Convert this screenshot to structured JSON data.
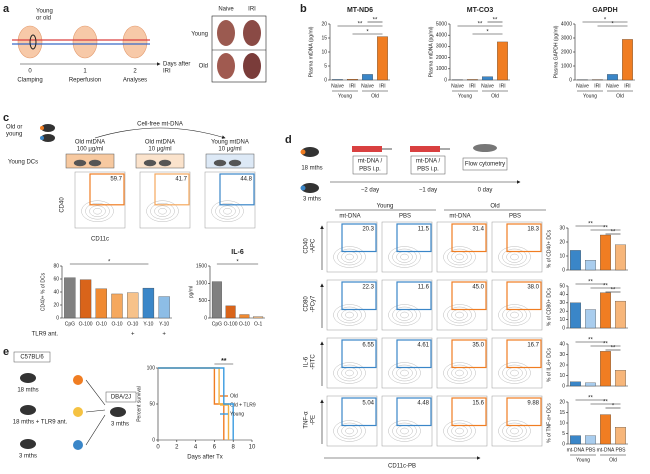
{
  "panels": {
    "a": {
      "letter": "a",
      "subject": [
        "Young",
        "or old"
      ],
      "days": [
        "0",
        "1",
        "2"
      ],
      "steps": [
        "Clamping",
        "Reperfusion",
        "Analyses"
      ],
      "axis": [
        "Days after",
        "IRI"
      ],
      "columns": [
        "Naive",
        "IRI"
      ],
      "rows": [
        "Young",
        "Old"
      ]
    },
    "b": {
      "letter": "b"
    },
    "c": {
      "letter": "c",
      "subject": [
        "Old or",
        "young"
      ],
      "treatment": "Cell-free mt-DNA",
      "wells": [
        [
          "Old mtDNA",
          "100 μg/ml"
        ],
        [
          "Old mtDNA",
          "10 μg/ml"
        ],
        [
          "Young mtDNA",
          "10 μg/ml"
        ]
      ],
      "cells": "Young DCs",
      "flow_values": [
        "59.7",
        "41.7",
        "44.8"
      ],
      "y_marker": "CD40",
      "x_marker": "CD11c"
    },
    "d": {
      "letter": "d",
      "mice": [
        "18 mths",
        "3 mths"
      ],
      "injection": [
        "mt-DNA /",
        "PBS i.p."
      ],
      "readout": "Flow cytometry",
      "days": [
        "−2 day",
        "−1 day",
        "0 day"
      ],
      "groups": [
        "Young",
        "Old"
      ],
      "columns": [
        "mt-DNA",
        "PBS",
        "mt-DNA",
        "PBS"
      ],
      "rows": [
        [
          "CD40",
          "-APC"
        ],
        [
          "CD80",
          "-PCy7"
        ],
        [
          "IL-6",
          "-FITC"
        ],
        [
          "TNF-α",
          "-PE"
        ]
      ],
      "flow_values": [
        [
          "20.3",
          "11.5",
          "31.4",
          "18.3"
        ],
        [
          "22.3",
          "11.6",
          "45.0",
          "38.0"
        ],
        [
          "6.55",
          "4.61",
          "35.0",
          "16.7"
        ],
        [
          "5.04",
          "4.48",
          "15.6",
          "9.88"
        ]
      ],
      "x_marker": "CD11c-PB"
    },
    "e": {
      "letter": "e",
      "donor": "C57BL/6",
      "donors": [
        "18 mths",
        "18 mths + TLR9 ant.",
        "3 mths"
      ],
      "recipient": "DBA/2J",
      "recipient_age": "3 mths"
    }
  },
  "chart_data": [
    {
      "type": "bar",
      "title": "MT-ND6",
      "ylabel": "Plasma mtDNA (pg/ml)",
      "categories": [
        "Naive",
        "IRI",
        "Naive",
        "IRI"
      ],
      "groups": [
        "Young",
        "Old"
      ],
      "values": [
        0.2,
        0.3,
        2,
        15.5
      ],
      "colors": [
        "#3a86c8",
        "#f07d22",
        "#3a86c8",
        "#f07d22"
      ],
      "ylim": [
        0,
        20
      ],
      "yticks": [
        0,
        5,
        10,
        15,
        20
      ],
      "significance": [
        "*",
        "**",
        "**"
      ]
    },
    {
      "type": "bar",
      "title": "MT-CO3",
      "ylabel": "Plasma mtDNA (pg/ml)",
      "categories": [
        "Naive",
        "IRI",
        "Naive",
        "IRI"
      ],
      "groups": [
        "Young",
        "Old"
      ],
      "values": [
        30,
        50,
        300,
        3400
      ],
      "colors": [
        "#3a86c8",
        "#f07d22",
        "#3a86c8",
        "#f07d22"
      ],
      "ylim": [
        0,
        5000
      ],
      "yticks": [
        0,
        1000,
        2000,
        3000,
        4000,
        5000
      ],
      "significance": [
        "*",
        "**",
        "**"
      ]
    },
    {
      "type": "bar",
      "title": "GAPDH",
      "ylabel": "Plasma GAPDH (pg/ml)",
      "categories": [
        "Naive",
        "IRI",
        "Naive",
        "IRI"
      ],
      "groups": [
        "Young",
        "Old"
      ],
      "values": [
        20,
        30,
        400,
        2900
      ],
      "colors": [
        "#3a86c8",
        "#f07d22",
        "#3a86c8",
        "#f07d22"
      ],
      "ylim": [
        0,
        4000
      ],
      "yticks": [
        0,
        1000,
        2000,
        3000,
        4000
      ],
      "significance": [
        "*",
        "*"
      ]
    },
    {
      "type": "bar",
      "ylabel": "CD40+ % of DCs",
      "categories": [
        "CpG",
        "O-100",
        "O-10",
        "O-10",
        "O-10",
        "Y-10",
        "Y-10"
      ],
      "values": [
        62,
        59,
        45,
        37,
        39,
        46,
        33
      ],
      "colors": [
        "#808080",
        "#d9641a",
        "#f08a32",
        "#f5a85e",
        "#f7c28a",
        "#3a86c8",
        "#8dbde6"
      ],
      "ylim": [
        0,
        80
      ],
      "yticks": [
        0,
        20,
        40,
        60,
        80
      ],
      "antagonist": "TLR9 ant.",
      "antagonist_marks": [
        "+",
        "+"
      ],
      "significance": [
        "*"
      ]
    },
    {
      "type": "bar",
      "title": "IL-6",
      "ylabel": "pg/ml",
      "categories": [
        "CpG",
        "O-100",
        "O-10",
        "O-1"
      ],
      "values": [
        1050,
        350,
        100,
        40
      ],
      "colors": [
        "#808080",
        "#d9641a",
        "#f08a32",
        "#f7c28a"
      ],
      "ylim": [
        0,
        1500
      ],
      "yticks": [
        0,
        500,
        1000,
        1500
      ],
      "significance": [
        "*"
      ]
    },
    {
      "type": "bar",
      "ylabel": "% of CD40+ DCs",
      "values": [
        14,
        7,
        25,
        18
      ],
      "colors": [
        "#3a86c8",
        "#a9cdee",
        "#f07d22",
        "#f7b67a"
      ],
      "ylim": [
        0,
        30
      ],
      "yticks": [
        0,
        10,
        20,
        30
      ],
      "significance": [
        "**",
        "**",
        "**"
      ]
    },
    {
      "type": "bar",
      "ylabel": "% of CD80+ DCs",
      "values": [
        30,
        22,
        42,
        32
      ],
      "colors": [
        "#3a86c8",
        "#a9cdee",
        "#f07d22",
        "#f7b67a"
      ],
      "ylim": [
        0,
        50
      ],
      "yticks": [
        0,
        10,
        20,
        30,
        40,
        50
      ],
      "significance": [
        "**",
        "**",
        "**"
      ]
    },
    {
      "type": "bar",
      "ylabel": "% of IL-6+ DCs",
      "values": [
        4,
        3,
        33,
        15
      ],
      "colors": [
        "#3a86c8",
        "#a9cdee",
        "#f07d22",
        "#f7b67a"
      ],
      "ylim": [
        0,
        40
      ],
      "yticks": [
        0,
        10,
        20,
        30,
        40
      ],
      "significance": [
        "**",
        "**",
        "**"
      ]
    },
    {
      "type": "bar",
      "ylabel": "% of TNF-α+ DCs",
      "categories": [
        "mt-DNA",
        "PBS",
        "mt-DNA",
        "PBS"
      ],
      "groups": [
        "Young",
        "Old"
      ],
      "values": [
        4,
        4,
        14,
        8
      ],
      "colors": [
        "#3a86c8",
        "#a9cdee",
        "#f07d22",
        "#f7b67a"
      ],
      "ylim": [
        0,
        20
      ],
      "yticks": [
        0,
        5,
        10,
        15,
        20
      ],
      "significance": [
        "**",
        "**",
        "*"
      ]
    },
    {
      "type": "line",
      "xlabel": "Days after Tx",
      "ylabel": "Percent survival",
      "xlim": [
        0,
        10
      ],
      "xticks": [
        0,
        2,
        4,
        6,
        8,
        10
      ],
      "ylim": [
        0,
        100
      ],
      "yticks": [
        0,
        50,
        100
      ],
      "significance": [
        "**"
      ],
      "series": [
        {
          "name": "Old",
          "color": "#f07d22",
          "x": [
            0,
            6,
            6,
            7,
            7
          ],
          "values": [
            100,
            100,
            50,
            50,
            0
          ]
        },
        {
          "name": "Old + TLR9",
          "color": "#f5b041",
          "x": [
            0,
            6.5,
            6.5,
            7.5,
            7.5
          ],
          "values": [
            100,
            100,
            50,
            50,
            0
          ]
        },
        {
          "name": "Young",
          "color": "#3a9be0",
          "x": [
            0,
            7,
            7,
            8,
            8
          ],
          "values": [
            100,
            100,
            50,
            50,
            0
          ]
        }
      ]
    }
  ]
}
